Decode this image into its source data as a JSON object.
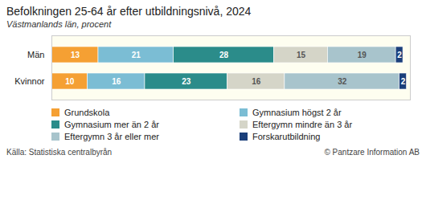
{
  "chart_data": {
    "type": "bar",
    "orientation": "horizontal",
    "stacked": true,
    "title": "Befolkningen 25-64 år efter utbildningsnivå, 2024",
    "subtitle": "Västmanlands län, procent",
    "categories": [
      "Män",
      "Kvinnor"
    ],
    "series": [
      {
        "name": "Grundskola",
        "color": "#F5A033",
        "values": [
          13,
          10
        ]
      },
      {
        "name": "Gymnasium högst 2 år",
        "color": "#7BBDD4",
        "values": [
          21,
          16
        ]
      },
      {
        "name": "Gymnasium mer än 2 år",
        "color": "#2B8C8A",
        "values": [
          28,
          23
        ]
      },
      {
        "name": "Eftergymn mindre än 3 år",
        "color": "#D5D5C8",
        "values": [
          15,
          16
        ]
      },
      {
        "name": "Eftergymn 3 år eller mer",
        "color": "#A8C4CC",
        "values": [
          19,
          32
        ]
      },
      {
        "name": "Forskarutbildning",
        "color": "#1B3F7A",
        "values": [
          2,
          2
        ]
      }
    ],
    "xlim": [
      0,
      100
    ],
    "data_labels": true,
    "tick_labels": "y",
    "grid": false,
    "legend": "bottom",
    "annotations": [
      "Källa: Statistiska centralbyrån",
      "© Pantzare Information AB"
    ]
  }
}
